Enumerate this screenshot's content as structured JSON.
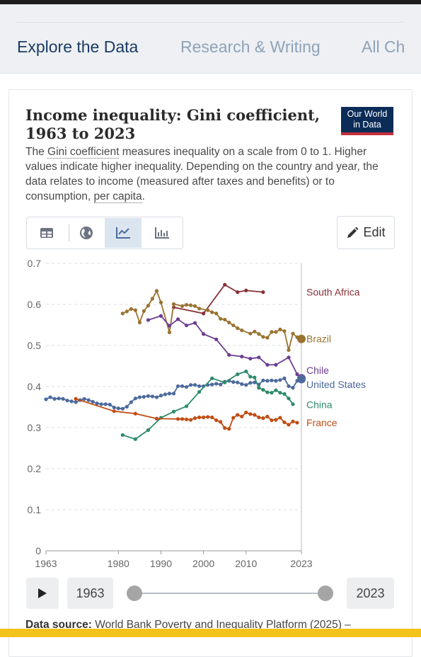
{
  "nav": {
    "items": [
      {
        "label": "Explore the Data",
        "active": true
      },
      {
        "label": "Research & Writing",
        "active": false
      },
      {
        "label": "All Ch",
        "active": false
      }
    ]
  },
  "header": {
    "title": "Income inequality: Gini coefficient, 1963 to 2023",
    "logo_line1": "Our World",
    "logo_line2": "in Data",
    "subtitle_pre": "The ",
    "subtitle_link1": "Gini coefficient",
    "subtitle_mid": " measures inequality on a scale from 0 to 1. Higher values indicate higher inequality. Depending on the country and year, the data relates to income (measured after taxes and benefits) or to consumption, ",
    "subtitle_link2": "per capita",
    "subtitle_post": "."
  },
  "toolbar": {
    "tabs": [
      {
        "icon": "table-icon",
        "active": false
      },
      {
        "icon": "globe-icon",
        "active": false
      },
      {
        "icon": "line-chart-icon",
        "active": true
      },
      {
        "icon": "bar-chart-icon",
        "active": false
      }
    ],
    "edit_label": "Edit"
  },
  "timeline": {
    "start_label": "1963",
    "end_label": "2023",
    "start_fraction": 0,
    "end_fraction": 1
  },
  "footer": {
    "source_label": "Data source:",
    "source_text": " World Bank Poverty and Inequality Platform (2025) –"
  },
  "colors": {
    "accent": "#4c6a9c",
    "nav_active": "#1b3c63",
    "bottom_bar": "#f4c21c"
  },
  "chart_data": {
    "type": "line",
    "title": "Income inequality: Gini coefficient, 1963 to 2023",
    "xlim": [
      1963,
      2023
    ],
    "ylim": [
      0,
      0.7
    ],
    "x_ticks": [
      1963,
      1980,
      1990,
      2000,
      2010,
      2023
    ],
    "y_ticks": [
      0,
      0.1,
      0.2,
      0.3,
      0.4,
      0.5,
      0.6,
      0.7
    ],
    "y_tick_labels": [
      "0",
      "0.1",
      "0.2",
      "0.3",
      "0.4",
      "0.5",
      "0.6",
      "0.7"
    ],
    "grid": "horizontal dashed",
    "legend": "right",
    "series": [
      {
        "name": "South Africa",
        "color": "#883039",
        "points": [
          [
            1993,
            0.593
          ],
          [
            2000,
            0.578
          ],
          [
            2005,
            0.648
          ],
          [
            2008,
            0.63
          ],
          [
            2010,
            0.634
          ],
          [
            2014,
            0.63
          ]
        ]
      },
      {
        "name": "Brazil",
        "color": "#9a7330",
        "points": [
          [
            1981,
            0.578
          ],
          [
            1982,
            0.583
          ],
          [
            1983,
            0.589
          ],
          [
            1984,
            0.586
          ],
          [
            1985,
            0.556
          ],
          [
            1986,
            0.584
          ],
          [
            1987,
            0.597
          ],
          [
            1988,
            0.614
          ],
          [
            1989,
            0.633
          ],
          [
            1990,
            0.605
          ],
          [
            1992,
            0.532
          ],
          [
            1993,
            0.601
          ],
          [
            1995,
            0.596
          ],
          [
            1996,
            0.599
          ],
          [
            1997,
            0.598
          ],
          [
            1998,
            0.596
          ],
          [
            1999,
            0.59
          ],
          [
            2001,
            0.586
          ],
          [
            2002,
            0.581
          ],
          [
            2003,
            0.578
          ],
          [
            2004,
            0.565
          ],
          [
            2005,
            0.563
          ],
          [
            2006,
            0.556
          ],
          [
            2007,
            0.549
          ],
          [
            2008,
            0.542
          ],
          [
            2009,
            0.537
          ],
          [
            2011,
            0.529
          ],
          [
            2012,
            0.534
          ],
          [
            2013,
            0.528
          ],
          [
            2014,
            0.521
          ],
          [
            2015,
            0.519
          ],
          [
            2016,
            0.533
          ],
          [
            2017,
            0.533
          ],
          [
            2018,
            0.539
          ],
          [
            2019,
            0.535
          ],
          [
            2020,
            0.489
          ],
          [
            2021,
            0.529
          ],
          [
            2022,
            0.52
          ],
          [
            2023,
            0.516
          ]
        ]
      },
      {
        "name": "Chile",
        "color": "#6d3e91",
        "points": [
          [
            1987,
            0.562
          ],
          [
            1990,
            0.572
          ],
          [
            1992,
            0.548
          ],
          [
            1994,
            0.564
          ],
          [
            1996,
            0.549
          ],
          [
            1998,
            0.555
          ],
          [
            2000,
            0.528
          ],
          [
            2003,
            0.515
          ],
          [
            2006,
            0.477
          ],
          [
            2009,
            0.473
          ],
          [
            2011,
            0.468
          ],
          [
            2013,
            0.471
          ],
          [
            2015,
            0.453
          ],
          [
            2017,
            0.453
          ],
          [
            2020,
            0.471
          ],
          [
            2022,
            0.43
          ],
          [
            2023,
            0.42
          ]
        ]
      },
      {
        "name": "United States",
        "color": "#4c6a9c",
        "points": [
          [
            1963,
            0.369
          ],
          [
            1964,
            0.374
          ],
          [
            1965,
            0.37
          ],
          [
            1966,
            0.371
          ],
          [
            1967,
            0.37
          ],
          [
            1968,
            0.366
          ],
          [
            1969,
            0.364
          ],
          [
            1970,
            0.362
          ],
          [
            1971,
            0.367
          ],
          [
            1972,
            0.37
          ],
          [
            1973,
            0.367
          ],
          [
            1974,
            0.363
          ],
          [
            1975,
            0.359
          ],
          [
            1976,
            0.357
          ],
          [
            1977,
            0.357
          ],
          [
            1978,
            0.356
          ],
          [
            1979,
            0.349
          ],
          [
            1980,
            0.347
          ],
          [
            1981,
            0.346
          ],
          [
            1982,
            0.351
          ],
          [
            1983,
            0.362
          ],
          [
            1984,
            0.371
          ],
          [
            1985,
            0.374
          ],
          [
            1986,
            0.375
          ],
          [
            1987,
            0.377
          ],
          [
            1988,
            0.376
          ],
          [
            1989,
            0.374
          ],
          [
            1990,
            0.378
          ],
          [
            1991,
            0.381
          ],
          [
            1992,
            0.383
          ],
          [
            1993,
            0.383
          ],
          [
            1994,
            0.401
          ],
          [
            1995,
            0.401
          ],
          [
            1996,
            0.399
          ],
          [
            1997,
            0.404
          ],
          [
            1998,
            0.404
          ],
          [
            1999,
            0.401
          ],
          [
            2000,
            0.401
          ],
          [
            2001,
            0.404
          ],
          [
            2002,
            0.405
          ],
          [
            2003,
            0.407
          ],
          [
            2004,
            0.405
          ],
          [
            2005,
            0.412
          ],
          [
            2006,
            0.414
          ],
          [
            2007,
            0.411
          ],
          [
            2008,
            0.41
          ],
          [
            2009,
            0.406
          ],
          [
            2010,
            0.404
          ],
          [
            2011,
            0.409
          ],
          [
            2012,
            0.41
          ],
          [
            2013,
            0.405
          ],
          [
            2014,
            0.415
          ],
          [
            2015,
            0.414
          ],
          [
            2016,
            0.415
          ],
          [
            2017,
            0.414
          ],
          [
            2018,
            0.416
          ],
          [
            2019,
            0.42
          ],
          [
            2020,
            0.401
          ],
          [
            2021,
            0.397
          ],
          [
            2022,
            0.414
          ],
          [
            2023,
            0.418
          ]
        ]
      },
      {
        "name": "China",
        "color": "#2e8b6a",
        "points": [
          [
            1981,
            0.282
          ],
          [
            1984,
            0.272
          ],
          [
            1987,
            0.294
          ],
          [
            1990,
            0.324
          ],
          [
            1993,
            0.339
          ],
          [
            1996,
            0.352
          ],
          [
            1999,
            0.387
          ],
          [
            2002,
            0.42
          ],
          [
            2005,
            0.41
          ],
          [
            2008,
            0.43
          ],
          [
            2010,
            0.437
          ],
          [
            2011,
            0.424
          ],
          [
            2012,
            0.422
          ],
          [
            2013,
            0.397
          ],
          [
            2014,
            0.392
          ],
          [
            2015,
            0.386
          ],
          [
            2016,
            0.385
          ],
          [
            2017,
            0.391
          ],
          [
            2018,
            0.385
          ],
          [
            2019,
            0.382
          ],
          [
            2020,
            0.371
          ],
          [
            2021,
            0.357
          ]
        ]
      },
      {
        "name": "France",
        "color": "#c14d14",
        "points": [
          [
            1970,
            0.37
          ],
          [
            1979,
            0.34
          ],
          [
            1984,
            0.334
          ],
          [
            1989,
            0.322
          ],
          [
            1994,
            0.321
          ],
          [
            1995,
            0.321
          ],
          [
            1996,
            0.32
          ],
          [
            1997,
            0.319
          ],
          [
            1998,
            0.323
          ],
          [
            1999,
            0.325
          ],
          [
            2000,
            0.325
          ],
          [
            2001,
            0.326
          ],
          [
            2002,
            0.325
          ],
          [
            2003,
            0.318
          ],
          [
            2004,
            0.314
          ],
          [
            2005,
            0.299
          ],
          [
            2006,
            0.297
          ],
          [
            2007,
            0.324
          ],
          [
            2008,
            0.331
          ],
          [
            2009,
            0.327
          ],
          [
            2010,
            0.337
          ],
          [
            2011,
            0.333
          ],
          [
            2012,
            0.331
          ],
          [
            2013,
            0.325
          ],
          [
            2014,
            0.323
          ],
          [
            2015,
            0.327
          ],
          [
            2016,
            0.318
          ],
          [
            2017,
            0.319
          ],
          [
            2018,
            0.324
          ],
          [
            2019,
            0.313
          ],
          [
            2020,
            0.307
          ],
          [
            2021,
            0.315
          ],
          [
            2022,
            0.312
          ]
        ]
      }
    ]
  }
}
